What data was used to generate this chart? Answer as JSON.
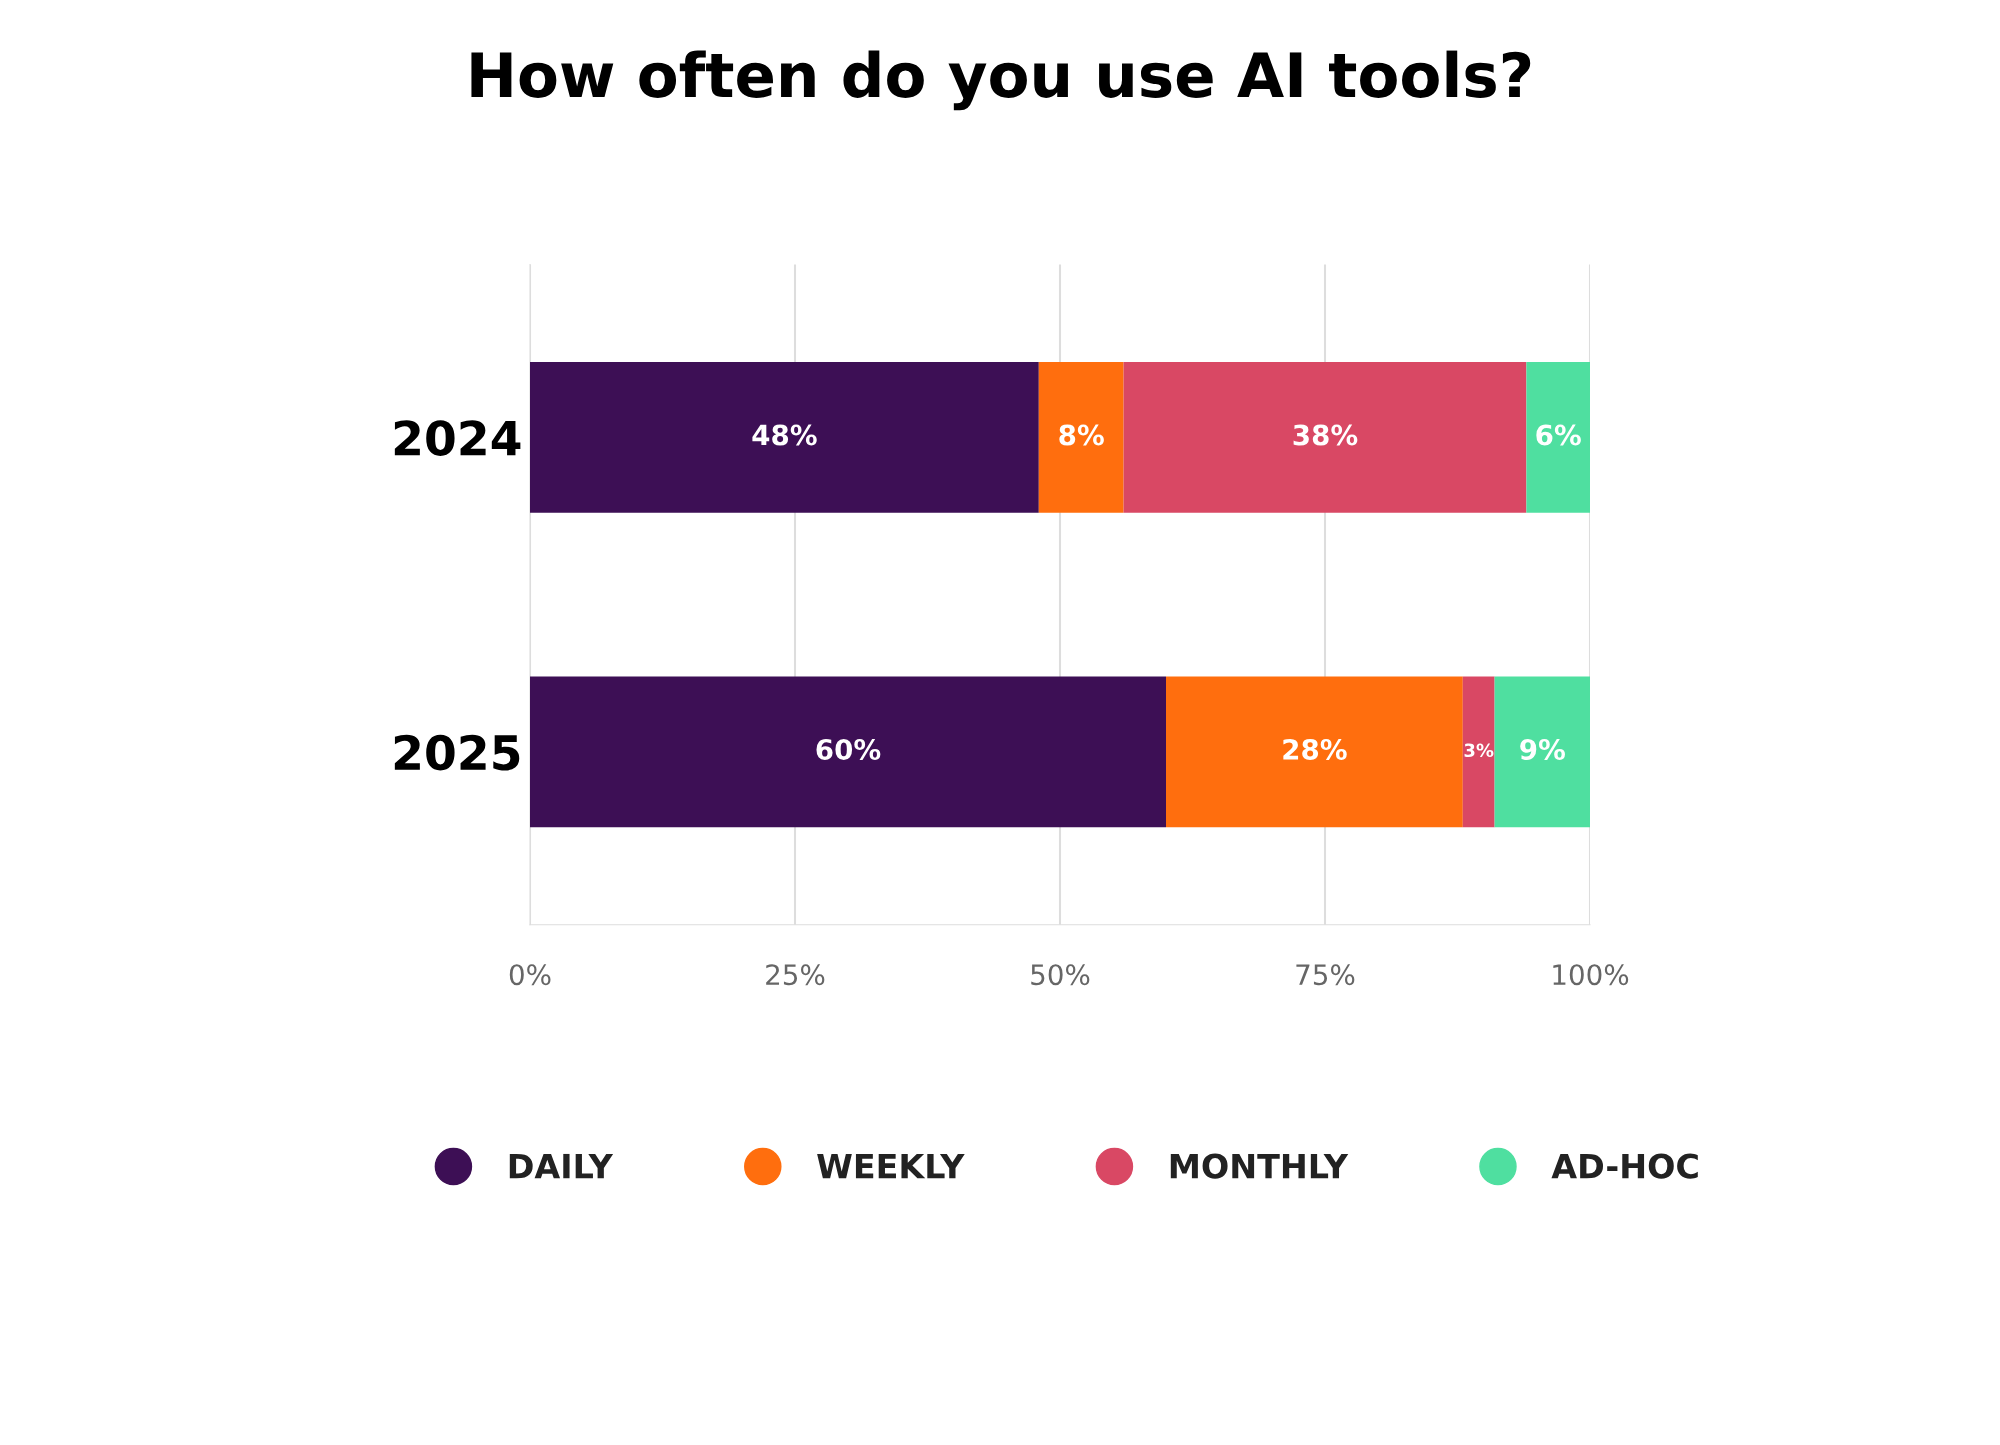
{
  "chart_data": {
    "type": "bar",
    "orientation": "horizontal",
    "stacked": true,
    "title": "How often do you use AI tools?",
    "categories": [
      "2024",
      "2025"
    ],
    "series": [
      {
        "name": "DAILY",
        "color": "#3d0f55",
        "values": [
          48,
          60
        ],
        "value_labels": [
          "48%",
          "60%"
        ]
      },
      {
        "name": "WEEKLY",
        "color": "#ff6e0e",
        "values": [
          8,
          28
        ],
        "value_labels": [
          "8%",
          "28%"
        ]
      },
      {
        "name": "MONTHLY",
        "color": "#d94864",
        "values": [
          38,
          3
        ],
        "value_labels": [
          "38%",
          "3%"
        ]
      },
      {
        "name": "AD-HOC",
        "color": "#4fdfa0",
        "values": [
          6,
          9
        ],
        "value_labels": [
          "6%",
          "9%"
        ]
      }
    ],
    "xlim": [
      0,
      100
    ],
    "xticks": [
      {
        "value": 0,
        "label": "0%"
      },
      {
        "value": 25,
        "label": "25%"
      },
      {
        "value": 50,
        "label": "50%"
      },
      {
        "value": 75,
        "label": "75%"
      },
      {
        "value": 100,
        "label": "100%"
      }
    ],
    "grid": "x",
    "legend": "bottom"
  }
}
